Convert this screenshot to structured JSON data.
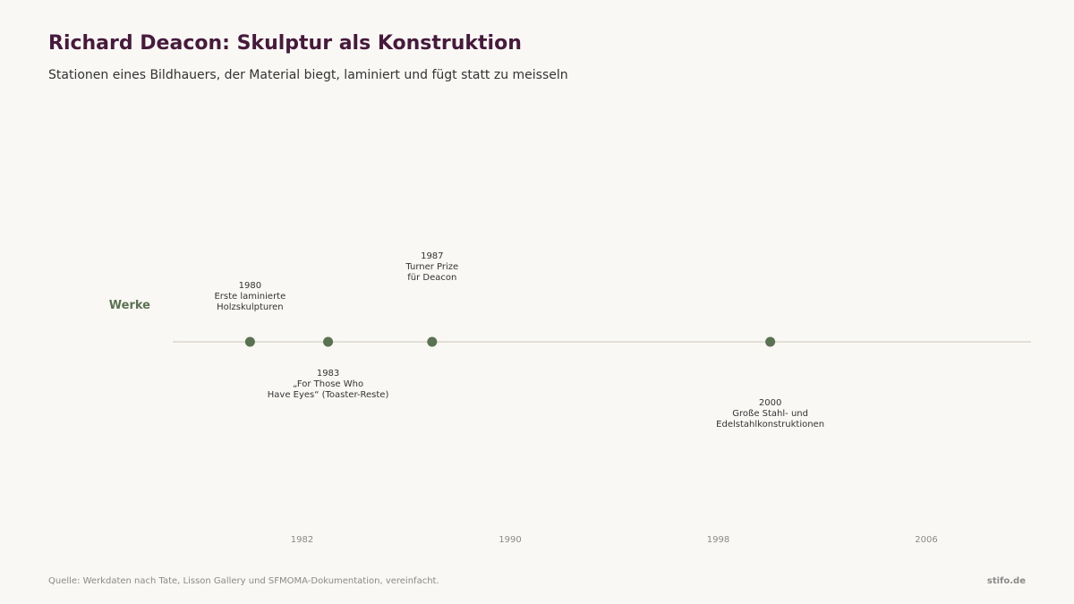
{
  "header": {
    "title": "Richard Deacon: Skulptur als Konstruktion",
    "subtitle": "Stationen eines Bildhauers, der Material biegt, laminiert und fügt statt zu meisseln"
  },
  "footer": {
    "source": "Quelle: Werkdaten nach Tate, Lisson Gallery und SFMOMA-Dokumentation, vereinfacht.",
    "brand": "stifo.de"
  },
  "colors": {
    "title": "#471a3c",
    "marker": "#5a7251",
    "lane_label": "#5a7251",
    "axis_line": "#e2e0d6",
    "tick_text": "#8a8a8a",
    "event_text": "#333333"
  },
  "chart_data": {
    "type": "timeline",
    "lanes": [
      {
        "name": "Werke",
        "events": [
          {
            "year": 1980,
            "lines": [
              "1980",
              "Erste laminierte",
              "Holzskulpturen"
            ],
            "label_position": "above"
          },
          {
            "year": 1983,
            "lines": [
              "1983",
              "„For Those Who",
              "Have Eyes“ (Toaster-Reste)"
            ],
            "label_position": "below"
          },
          {
            "year": 1987,
            "lines": [
              "1987",
              "Turner Prize",
              "für Deacon"
            ],
            "label_position": "above-far"
          },
          {
            "year": 2000,
            "lines": [
              "2000",
              "Große Stahl- und",
              "Edelstahlkonstruktionen"
            ],
            "label_position": "below-far"
          }
        ]
      }
    ],
    "x_ticks": [
      1982,
      1990,
      1998,
      2006
    ],
    "xlim": [
      1977,
      2010
    ],
    "grid": false
  }
}
